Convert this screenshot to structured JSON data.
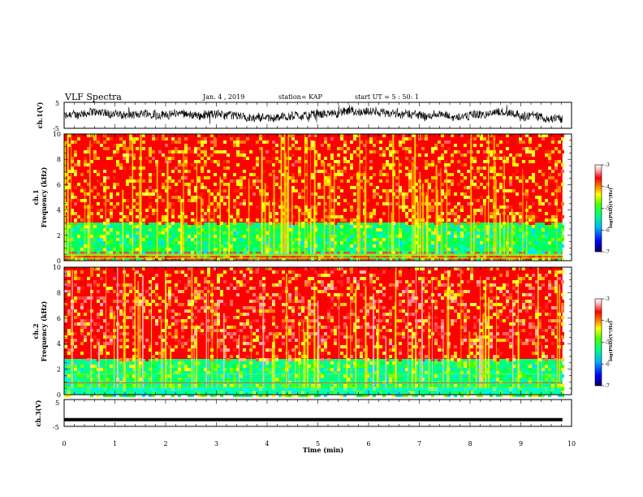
{
  "header": {
    "title": "VLF Spectra",
    "date": "Jan. 4 , 2019",
    "station": "station= KAP",
    "start": "start UT =  5 : 50: 1"
  },
  "chart_data": [
    {
      "type": "line",
      "ylabel": "ch.1(V)",
      "ylim": [
        -5,
        5
      ],
      "yticks": [
        "5",
        "-5"
      ],
      "xlim": [
        0,
        10
      ],
      "series": [
        {
          "color": "#000000"
        }
      ]
    },
    {
      "type": "heatmap",
      "ylabel_top": "ch.1",
      "ylabel": "Frequency (kHz)",
      "ylim": [
        0,
        10
      ],
      "yticks": [
        "0",
        "2",
        "4",
        "6",
        "8",
        "10"
      ],
      "xlim": [
        0,
        10
      ],
      "data_end_min": 9.82,
      "colorbar": {
        "range": [
          -7,
          -3
        ],
        "ticks": [
          "-3",
          "-4",
          "-5",
          "-6",
          "-7"
        ],
        "label": "log(PSD)(V²/Hz)"
      },
      "bands": [
        {
          "from_khz": 0,
          "to_khz": 0.7,
          "dominant": "red-yellow"
        },
        {
          "from_khz": 0.7,
          "to_khz": 3.0,
          "dominant": "green"
        },
        {
          "from_khz": 3.0,
          "to_khz": 10,
          "dominant": "red"
        }
      ]
    },
    {
      "type": "heatmap",
      "ylabel_top": "ch.2",
      "ylabel": "Frequency (kHz)",
      "ylim": [
        0,
        10
      ],
      "yticks": [
        "0",
        "2",
        "4",
        "6",
        "8",
        "10"
      ],
      "xlim": [
        0,
        10
      ],
      "data_end_min": 9.82,
      "colorbar": {
        "range": [
          -7,
          -3
        ],
        "ticks": [
          "-3",
          "-4",
          "-5",
          "-6",
          "-7"
        ],
        "label": "log(PSD)(V²/Hz)"
      },
      "bands": [
        {
          "from_khz": 0,
          "to_khz": 2.8,
          "dominant": "green"
        },
        {
          "from_khz": 2.8,
          "to_khz": 10,
          "dominant": "red-pink"
        }
      ]
    },
    {
      "type": "line",
      "ylabel": "ch.3(V)",
      "ylim": [
        -5,
        5
      ],
      "yticks": [
        "5",
        "-5"
      ],
      "xlim": [
        0,
        10
      ],
      "xlabel": "Time (min)",
      "xticks": [
        "0",
        "1",
        "2",
        "3",
        "4",
        "5",
        "6",
        "7",
        "8",
        "9",
        "10"
      ],
      "series": [
        {
          "constant_value": -2.5,
          "color": "#000000"
        }
      ]
    }
  ],
  "colors": {
    "colormap": [
      "#00005a",
      "#0000ff",
      "#00b4ff",
      "#00ff80",
      "#50ff00",
      "#ffff00",
      "#ff8000",
      "#ff0000",
      "#ffb0b0",
      "#ffffff"
    ]
  }
}
